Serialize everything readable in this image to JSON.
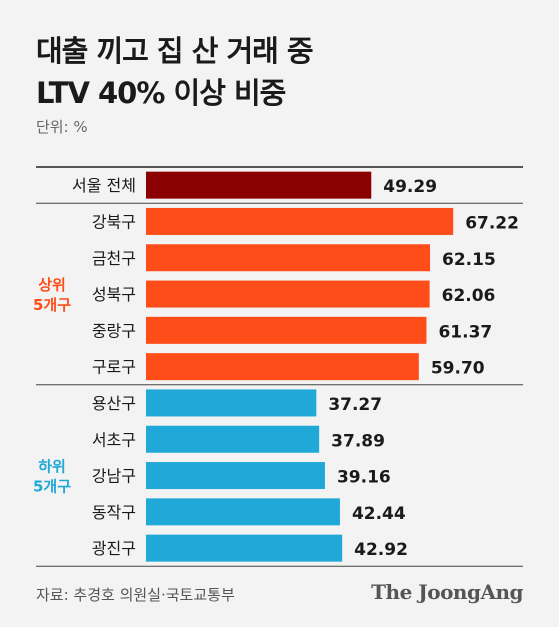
{
  "title_line1": "대출 끼고 집 산 거래 중",
  "title_line2": "LTV 40% 이상 비중",
  "unit": "단위: %",
  "source": "자료: 추경호 의원실·국토교통부",
  "brand": "The JoongAng",
  "colors": {
    "overall": "#8b0000",
    "top": "#ff4d1a",
    "bottom": "#1fa8d8"
  },
  "chart_data": {
    "type": "bar",
    "orientation": "horizontal",
    "title": "대출 끼고 집 산 거래 중 LTV 40% 이상 비중",
    "unit": "%",
    "xlim": [
      0,
      70
    ],
    "grid": false,
    "categories": [
      "서울 전체",
      "강북구",
      "금천구",
      "성북구",
      "중랑구",
      "구로구",
      "용산구",
      "서초구",
      "강남구",
      "동작구",
      "광진구"
    ],
    "values": [
      49.29,
      67.22,
      62.15,
      62.06,
      61.37,
      59.7,
      37.27,
      37.89,
      39.16,
      42.44,
      42.92
    ],
    "value_labels": [
      "49.29",
      "67.22",
      "62.15",
      "62.06",
      "61.37",
      "59.70",
      "37.27",
      "37.89",
      "39.16",
      "42.44",
      "42.92"
    ],
    "groups": [
      {
        "label_line1": "상위",
        "label_line2": "5개구",
        "color_key": "top",
        "start": 1,
        "end": 5
      },
      {
        "label_line1": "하위",
        "label_line2": "5개구",
        "color_key": "bottom",
        "start": 6,
        "end": 10
      }
    ]
  }
}
